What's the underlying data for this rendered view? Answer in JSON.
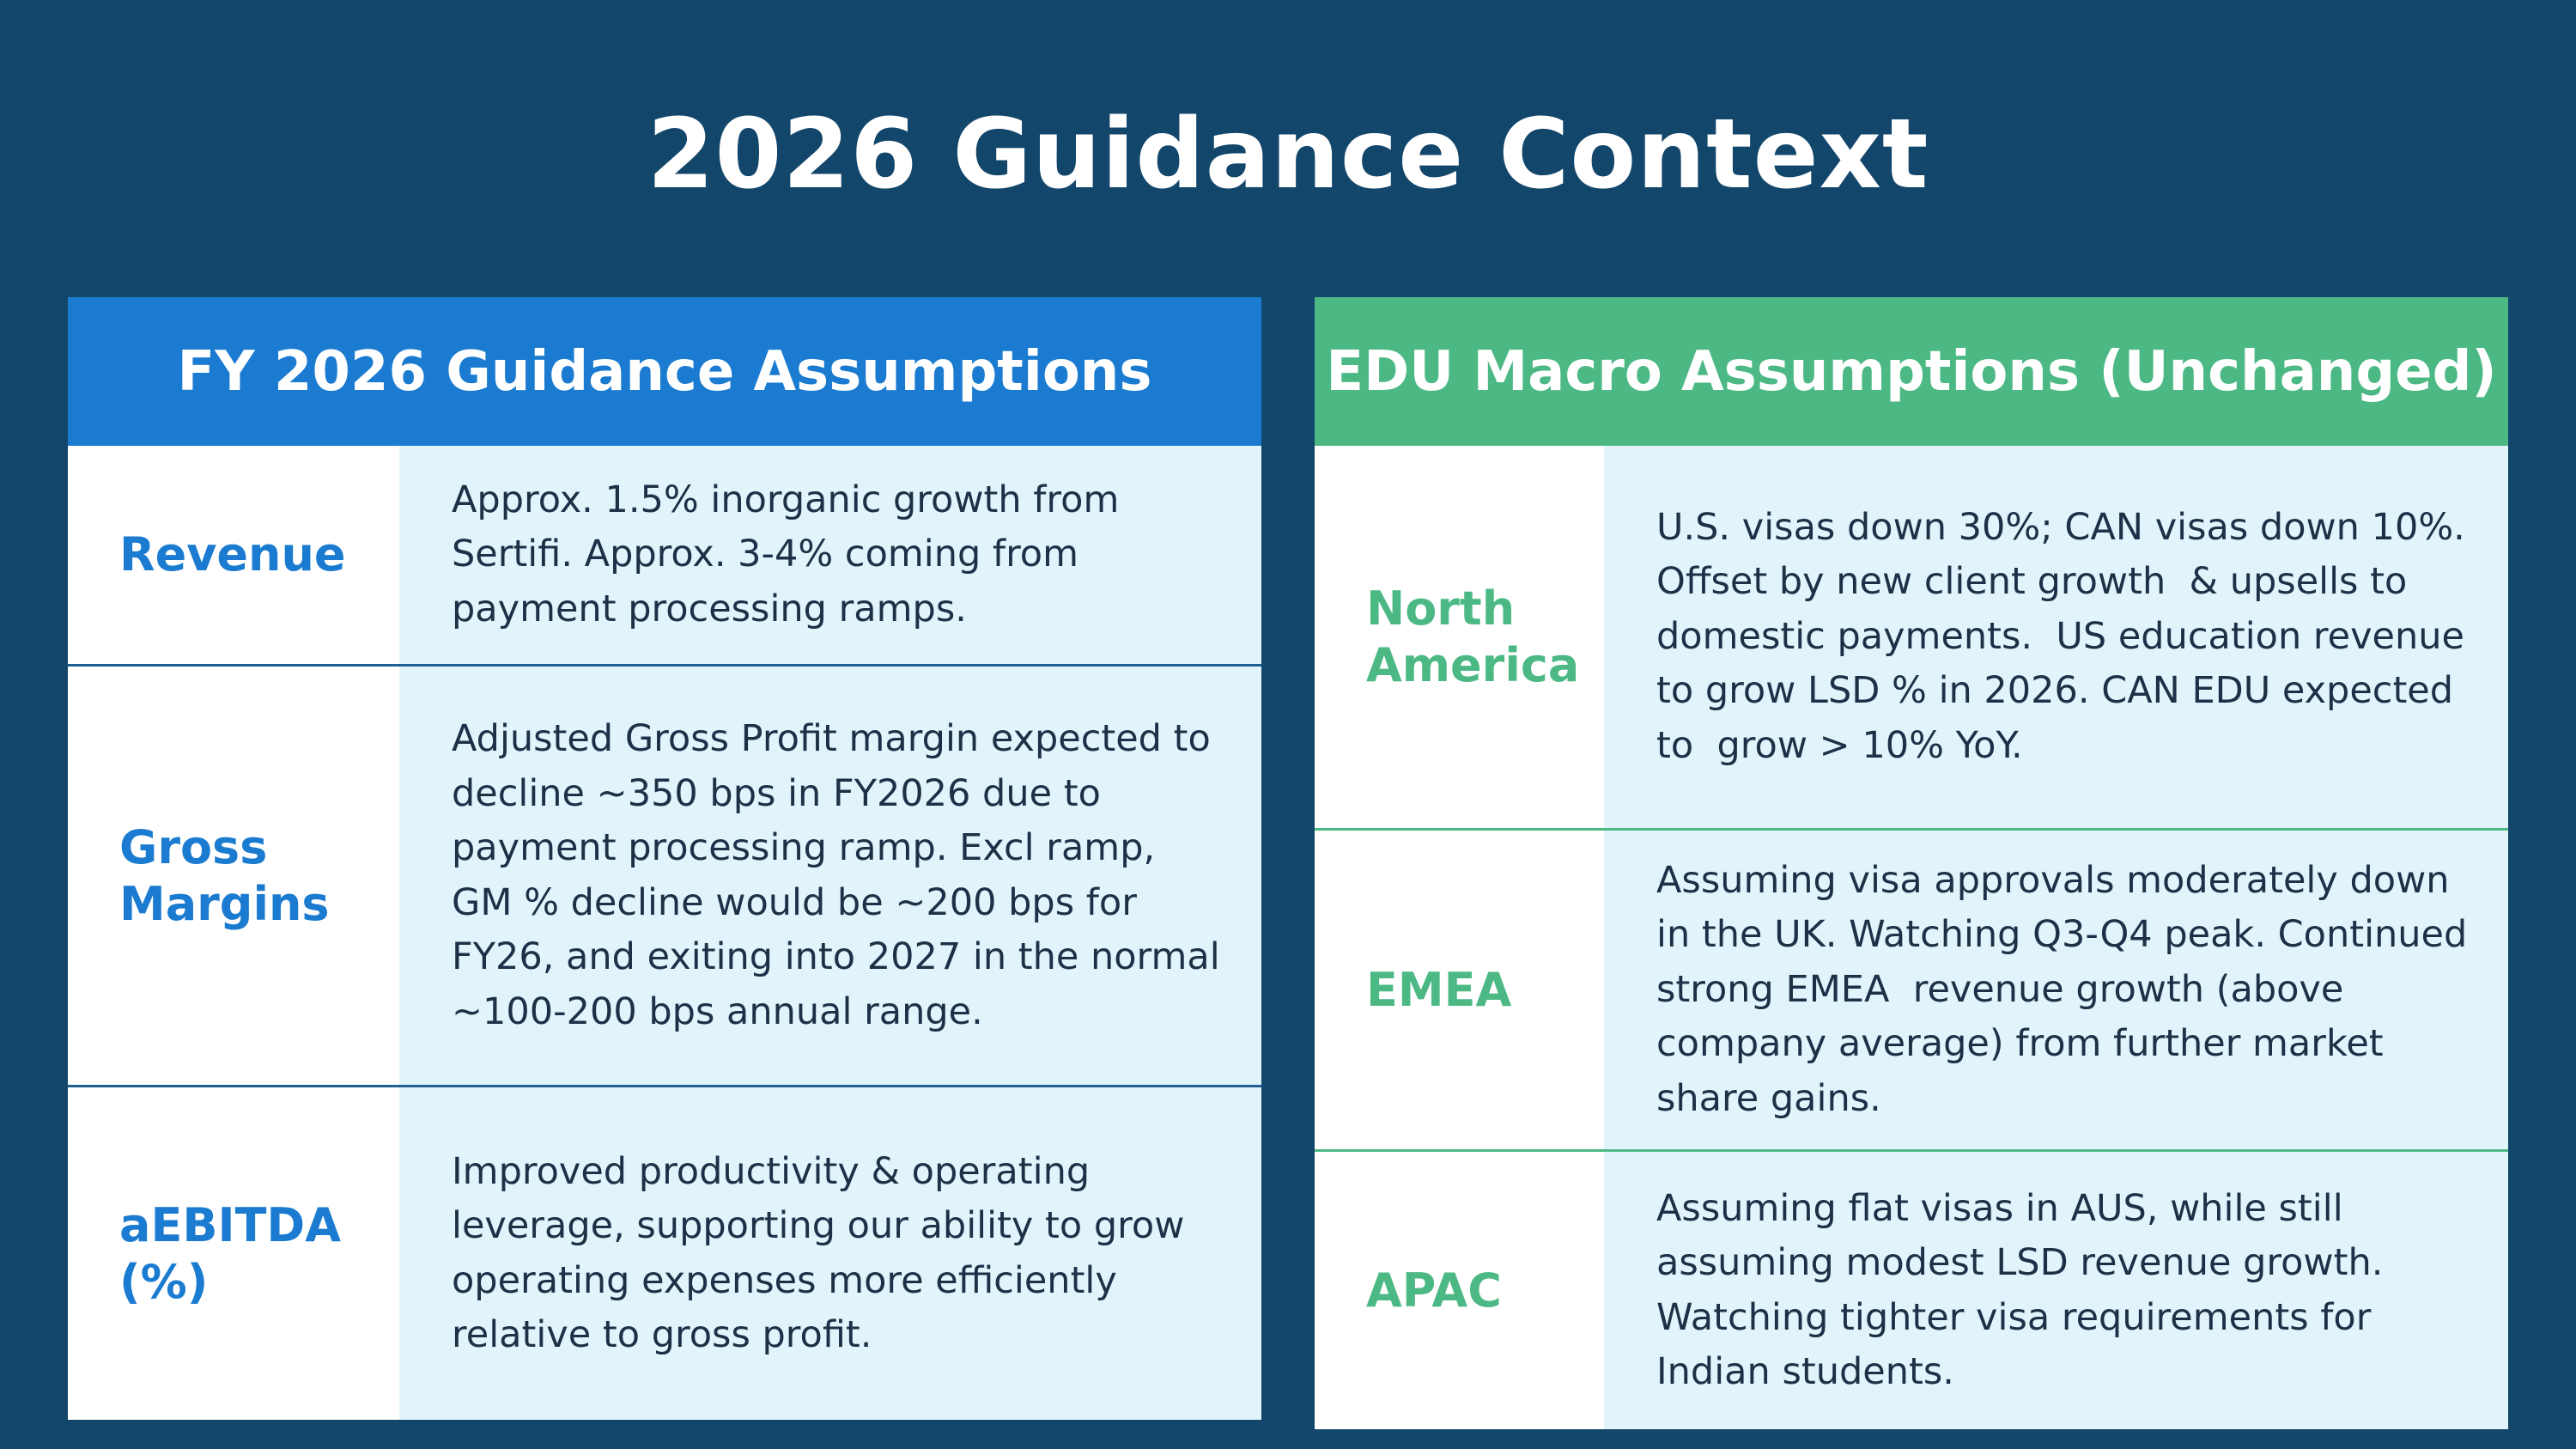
{
  "title": "2026 Guidance Context",
  "left_panel": {
    "header": "FY 2026 Guidance Assumptions",
    "rows": [
      {
        "label_lines": [
          "Revenue"
        ],
        "text_lines": [
          "Approx. 1.5% inorganic growth from",
          "Sertifi. Approx. 3-4% coming from",
          "payment processing ramps."
        ]
      },
      {
        "label_lines": [
          "Gross",
          "Margins"
        ],
        "text_lines": [
          "Adjusted Gross Profit margin expected to",
          "decline ~350 bps in FY2026 due to",
          "payment processing ramp. Excl ramp,",
          "GM % decline would be ~200 bps for",
          "FY26, and exiting into 2027 in the normal",
          "~100-200 bps annual range."
        ]
      },
      {
        "label_lines": [
          "aEBITDA",
          "(%)"
        ],
        "text_lines": [
          "Improved productivity & operating",
          "leverage, supporting our ability to grow",
          "operating expenses more efficiently",
          "relative to gross profit."
        ]
      }
    ]
  },
  "right_panel": {
    "header": "EDU Macro Assumptions (Unchanged)",
    "rows": [
      {
        "label_lines": [
          "North",
          "America"
        ],
        "text_lines": [
          "U.S. visas down 30%; CAN visas down 10%.",
          "Offset by new client growth  & upsells to",
          "domestic payments.  US education revenue",
          "to grow LSD % in 2026. CAN EDU expected",
          "to  grow > 10% YoY."
        ]
      },
      {
        "label_lines": [
          "EMEA"
        ],
        "text_lines": [
          "Assuming visa approvals moderately down",
          "in the UK. Watching Q3-Q4 peak. Continued",
          "strong EMEA  revenue growth (above",
          "company average) from further market",
          "share gains."
        ]
      },
      {
        "label_lines": [
          "APAC"
        ],
        "text_lines": [
          "Assuming flat visas in AUS, while still",
          "assuming modest LSD revenue growth.",
          "Watching tighter visa requirements for",
          "Indian students."
        ]
      }
    ]
  },
  "colors": {
    "background": "#13466b",
    "left_accent": "#1a7bd0",
    "right_accent": "#4cb985",
    "text_cell_bg": "#e2f4fb",
    "body_text": "#1d3047"
  }
}
